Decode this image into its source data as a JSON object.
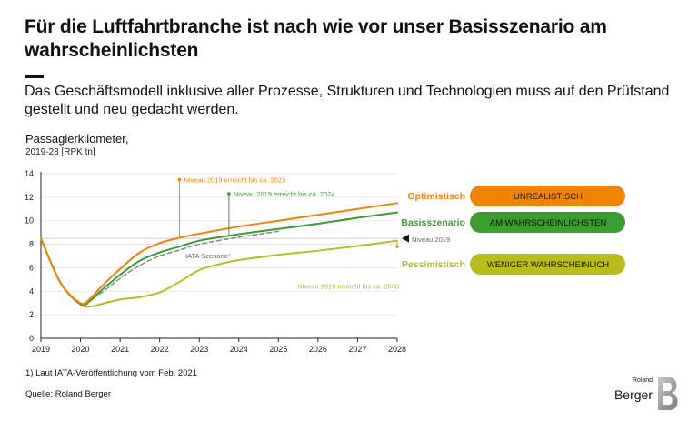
{
  "title": "Für die Luftfahrtbranche ist nach wie vor unser Basisszenario am wahrscheinlichsten",
  "subtitle": "Das Geschäftsmodell inklusive aller Prozesse, Strukturen und Technologien muss auf den Prüfstand gestellt und neu gedacht werden.",
  "unit_label": "Passagierkilometer,",
  "unit_sub": "2019-28 [RPK tn]",
  "footnote": "1) Laut IATA-Veröffentlichung vom Feb. 2021",
  "source": "Quelle: Roland Berger",
  "logo": {
    "top": "Roland",
    "main": "Berger",
    "mark": "B"
  },
  "colors": {
    "optimistic": "#F08400",
    "base": "#3A9E2F",
    "pessimistic": "#B9BD16",
    "iata": "#888888",
    "grid": "#E3E3E3",
    "axis": "#222222"
  },
  "chart_data": {
    "type": "line",
    "title": "Passagierkilometer, 2019-28 [RPK tn]",
    "xlabel": "",
    "ylabel": "RPK tn",
    "xlim": [
      2019,
      2028
    ],
    "ylim": [
      0,
      14
    ],
    "x_ticks": [
      2019,
      2020,
      2021,
      2022,
      2023,
      2024,
      2025,
      2026,
      2027,
      2028
    ],
    "y_ticks": [
      0,
      2,
      4,
      6,
      8,
      10,
      12,
      14
    ],
    "reference_line": {
      "value": 8.5,
      "label": "Niveau 2019"
    },
    "series": [
      {
        "key": "optimistic",
        "name": "Optimistisch",
        "rating": "UNREALISTISCH",
        "x": [
          2019,
          2019.5,
          2020,
          2020.25,
          2020.5,
          2021,
          2021.5,
          2022,
          2022.5,
          2023,
          2024,
          2025,
          2026,
          2027,
          2028
        ],
        "y": [
          8.5,
          4.7,
          3.0,
          3.4,
          4.3,
          5.9,
          7.3,
          8.1,
          8.55,
          8.9,
          9.5,
          10.0,
          10.5,
          11.0,
          11.5
        ]
      },
      {
        "key": "base",
        "name": "Basisszenario",
        "rating": "AM WAHRSCHEINLICHSTEN",
        "x": [
          2019,
          2019.5,
          2020,
          2020.25,
          2020.5,
          2021,
          2021.5,
          2022,
          2022.5,
          2023,
          2024,
          2025,
          2026,
          2027,
          2028
        ],
        "y": [
          8.5,
          4.7,
          2.9,
          3.2,
          4.0,
          5.4,
          6.6,
          7.3,
          7.8,
          8.3,
          8.85,
          9.3,
          9.75,
          10.25,
          10.7
        ]
      },
      {
        "key": "pessimistic",
        "name": "Pessimistisch",
        "rating": "WENIGER WAHRSCHEINLICH",
        "x": [
          2019,
          2019.5,
          2020,
          2020.25,
          2020.5,
          2021,
          2021.5,
          2022,
          2022.5,
          2023,
          2023.5,
          2024,
          2025,
          2026,
          2027,
          2028
        ],
        "y": [
          8.5,
          4.7,
          2.9,
          2.7,
          2.9,
          3.3,
          3.5,
          3.9,
          4.8,
          5.8,
          6.3,
          6.65,
          7.1,
          7.45,
          7.85,
          8.3
        ]
      },
      {
        "key": "iata",
        "name": "IATA Szenario¹",
        "dashed": true,
        "x": [
          2020,
          2020.5,
          2021,
          2021.5,
          2022,
          2022.5,
          2023,
          2024,
          2025
        ],
        "y": [
          2.8,
          3.8,
          5.1,
          6.2,
          7.0,
          7.5,
          8.0,
          8.6,
          9.1
        ]
      }
    ],
    "annotations": [
      {
        "series": "optimistic",
        "text": "Niveau 2019 erreicht bis ca. 2023",
        "x": 2022.5,
        "y": 8.55,
        "marker_y": 13.5
      },
      {
        "series": "base",
        "text": "Niveau 2019 erreicht bis ca. 2024",
        "x": 2023.75,
        "y": 8.7,
        "marker_y": 12.3
      },
      {
        "series": "pessimistic",
        "text": "Niveau 2019 erreicht bis ca. 2030",
        "x": 2028,
        "y": 8.3,
        "marker_y": 7.8
      }
    ]
  }
}
